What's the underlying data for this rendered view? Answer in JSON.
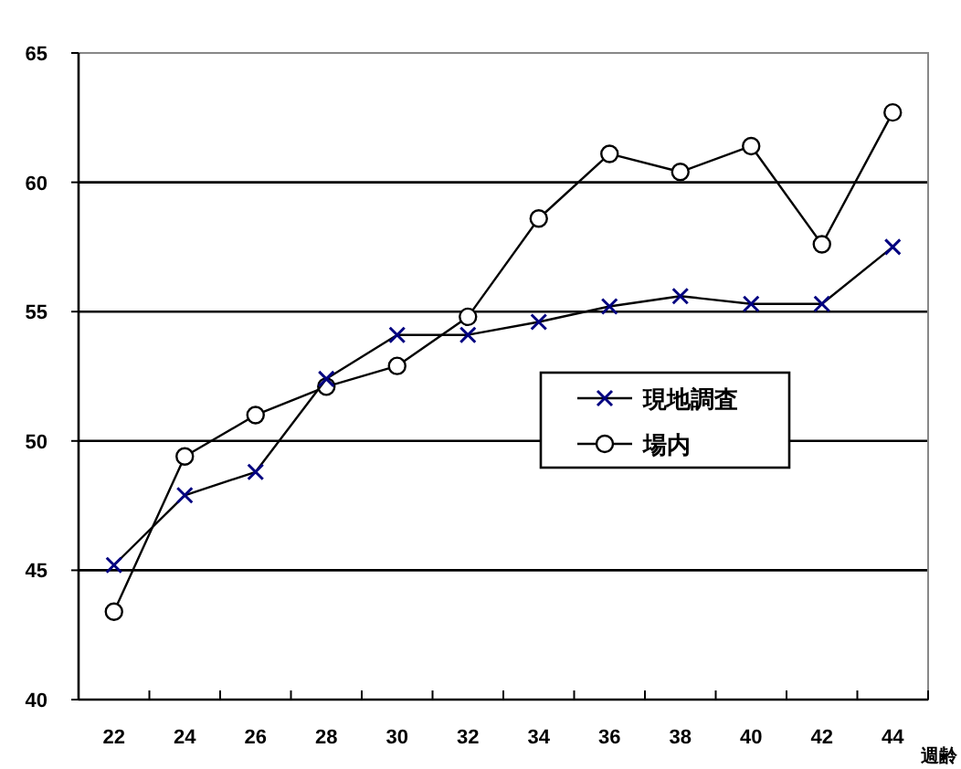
{
  "chart_data": {
    "type": "line",
    "xlabel": "週齢",
    "categories": [
      "22",
      "24",
      "26",
      "28",
      "30",
      "32",
      "34",
      "36",
      "38",
      "40",
      "42",
      "44"
    ],
    "ylim": [
      40,
      65
    ],
    "yticks": [
      40,
      45,
      50,
      55,
      60,
      65
    ],
    "grid": "y",
    "legend": "right",
    "series": [
      {
        "name": "現地調査",
        "color": "#000080",
        "marker": "cross",
        "values": [
          45.2,
          47.9,
          48.8,
          52.4,
          54.1,
          54.1,
          54.6,
          55.2,
          55.6,
          55.3,
          55.3,
          57.5
        ]
      },
      {
        "name": "場内",
        "color": "#000000",
        "marker": "circle",
        "values": [
          43.4,
          49.4,
          51.0,
          52.1,
          52.9,
          54.8,
          58.6,
          61.1,
          60.4,
          61.4,
          57.6,
          62.7
        ]
      }
    ]
  }
}
